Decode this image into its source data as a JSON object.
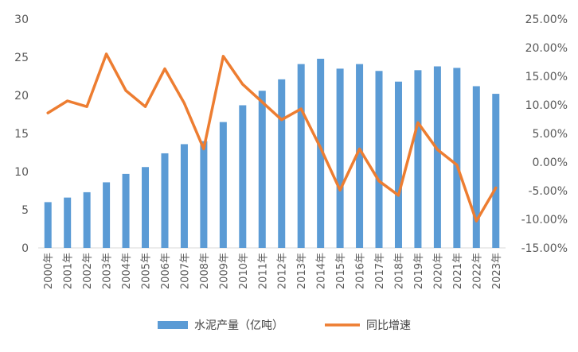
{
  "chart_data": {
    "type": "bar",
    "categories": [
      "2000年",
      "2001年",
      "2002年",
      "2003年",
      "2004年",
      "2005年",
      "2006年",
      "2007年",
      "2008年",
      "2009年",
      "2010年",
      "2011年",
      "2012年",
      "2013年",
      "2014年",
      "2015年",
      "2016年",
      "2017年",
      "2018年",
      "2019年",
      "2020年",
      "2021年",
      "2022年",
      "2023年"
    ],
    "series": [
      {
        "name": "水泥产量（亿吨）",
        "type": "bar",
        "axis": "left",
        "color": "#5B9BD5",
        "values": [
          6.0,
          6.6,
          7.3,
          8.6,
          9.7,
          10.6,
          12.4,
          13.6,
          14.0,
          16.5,
          18.7,
          20.6,
          22.1,
          24.1,
          24.8,
          23.5,
          24.1,
          23.2,
          21.8,
          23.3,
          23.8,
          23.6,
          21.2,
          20.2
        ]
      },
      {
        "name": "同比增速",
        "type": "line",
        "axis": "right",
        "color": "#ED7D31",
        "values": [
          8.6,
          10.7,
          9.7,
          18.9,
          12.5,
          9.7,
          16.3,
          10.3,
          2.3,
          18.5,
          13.6,
          10.5,
          7.4,
          9.3,
          2.5,
          -4.9,
          2.3,
          -3.3,
          -5.8,
          6.9,
          2.2,
          -0.5,
          -10.3,
          -4.5
        ]
      }
    ],
    "left_axis": {
      "min": 0,
      "max": 30,
      "step": 5,
      "tick_labels": [
        "0",
        "5",
        "10",
        "15",
        "20",
        "25",
        "30"
      ]
    },
    "right_axis": {
      "min": -15,
      "max": 25,
      "step": 5,
      "tick_labels": [
        "-15.00%",
        "-10.00%",
        "-5.00%",
        "0.00%",
        "5.00%",
        "10.00%",
        "15.00%",
        "20.00%",
        "25.00%"
      ]
    },
    "grid": false,
    "legend_position": "bottom"
  }
}
